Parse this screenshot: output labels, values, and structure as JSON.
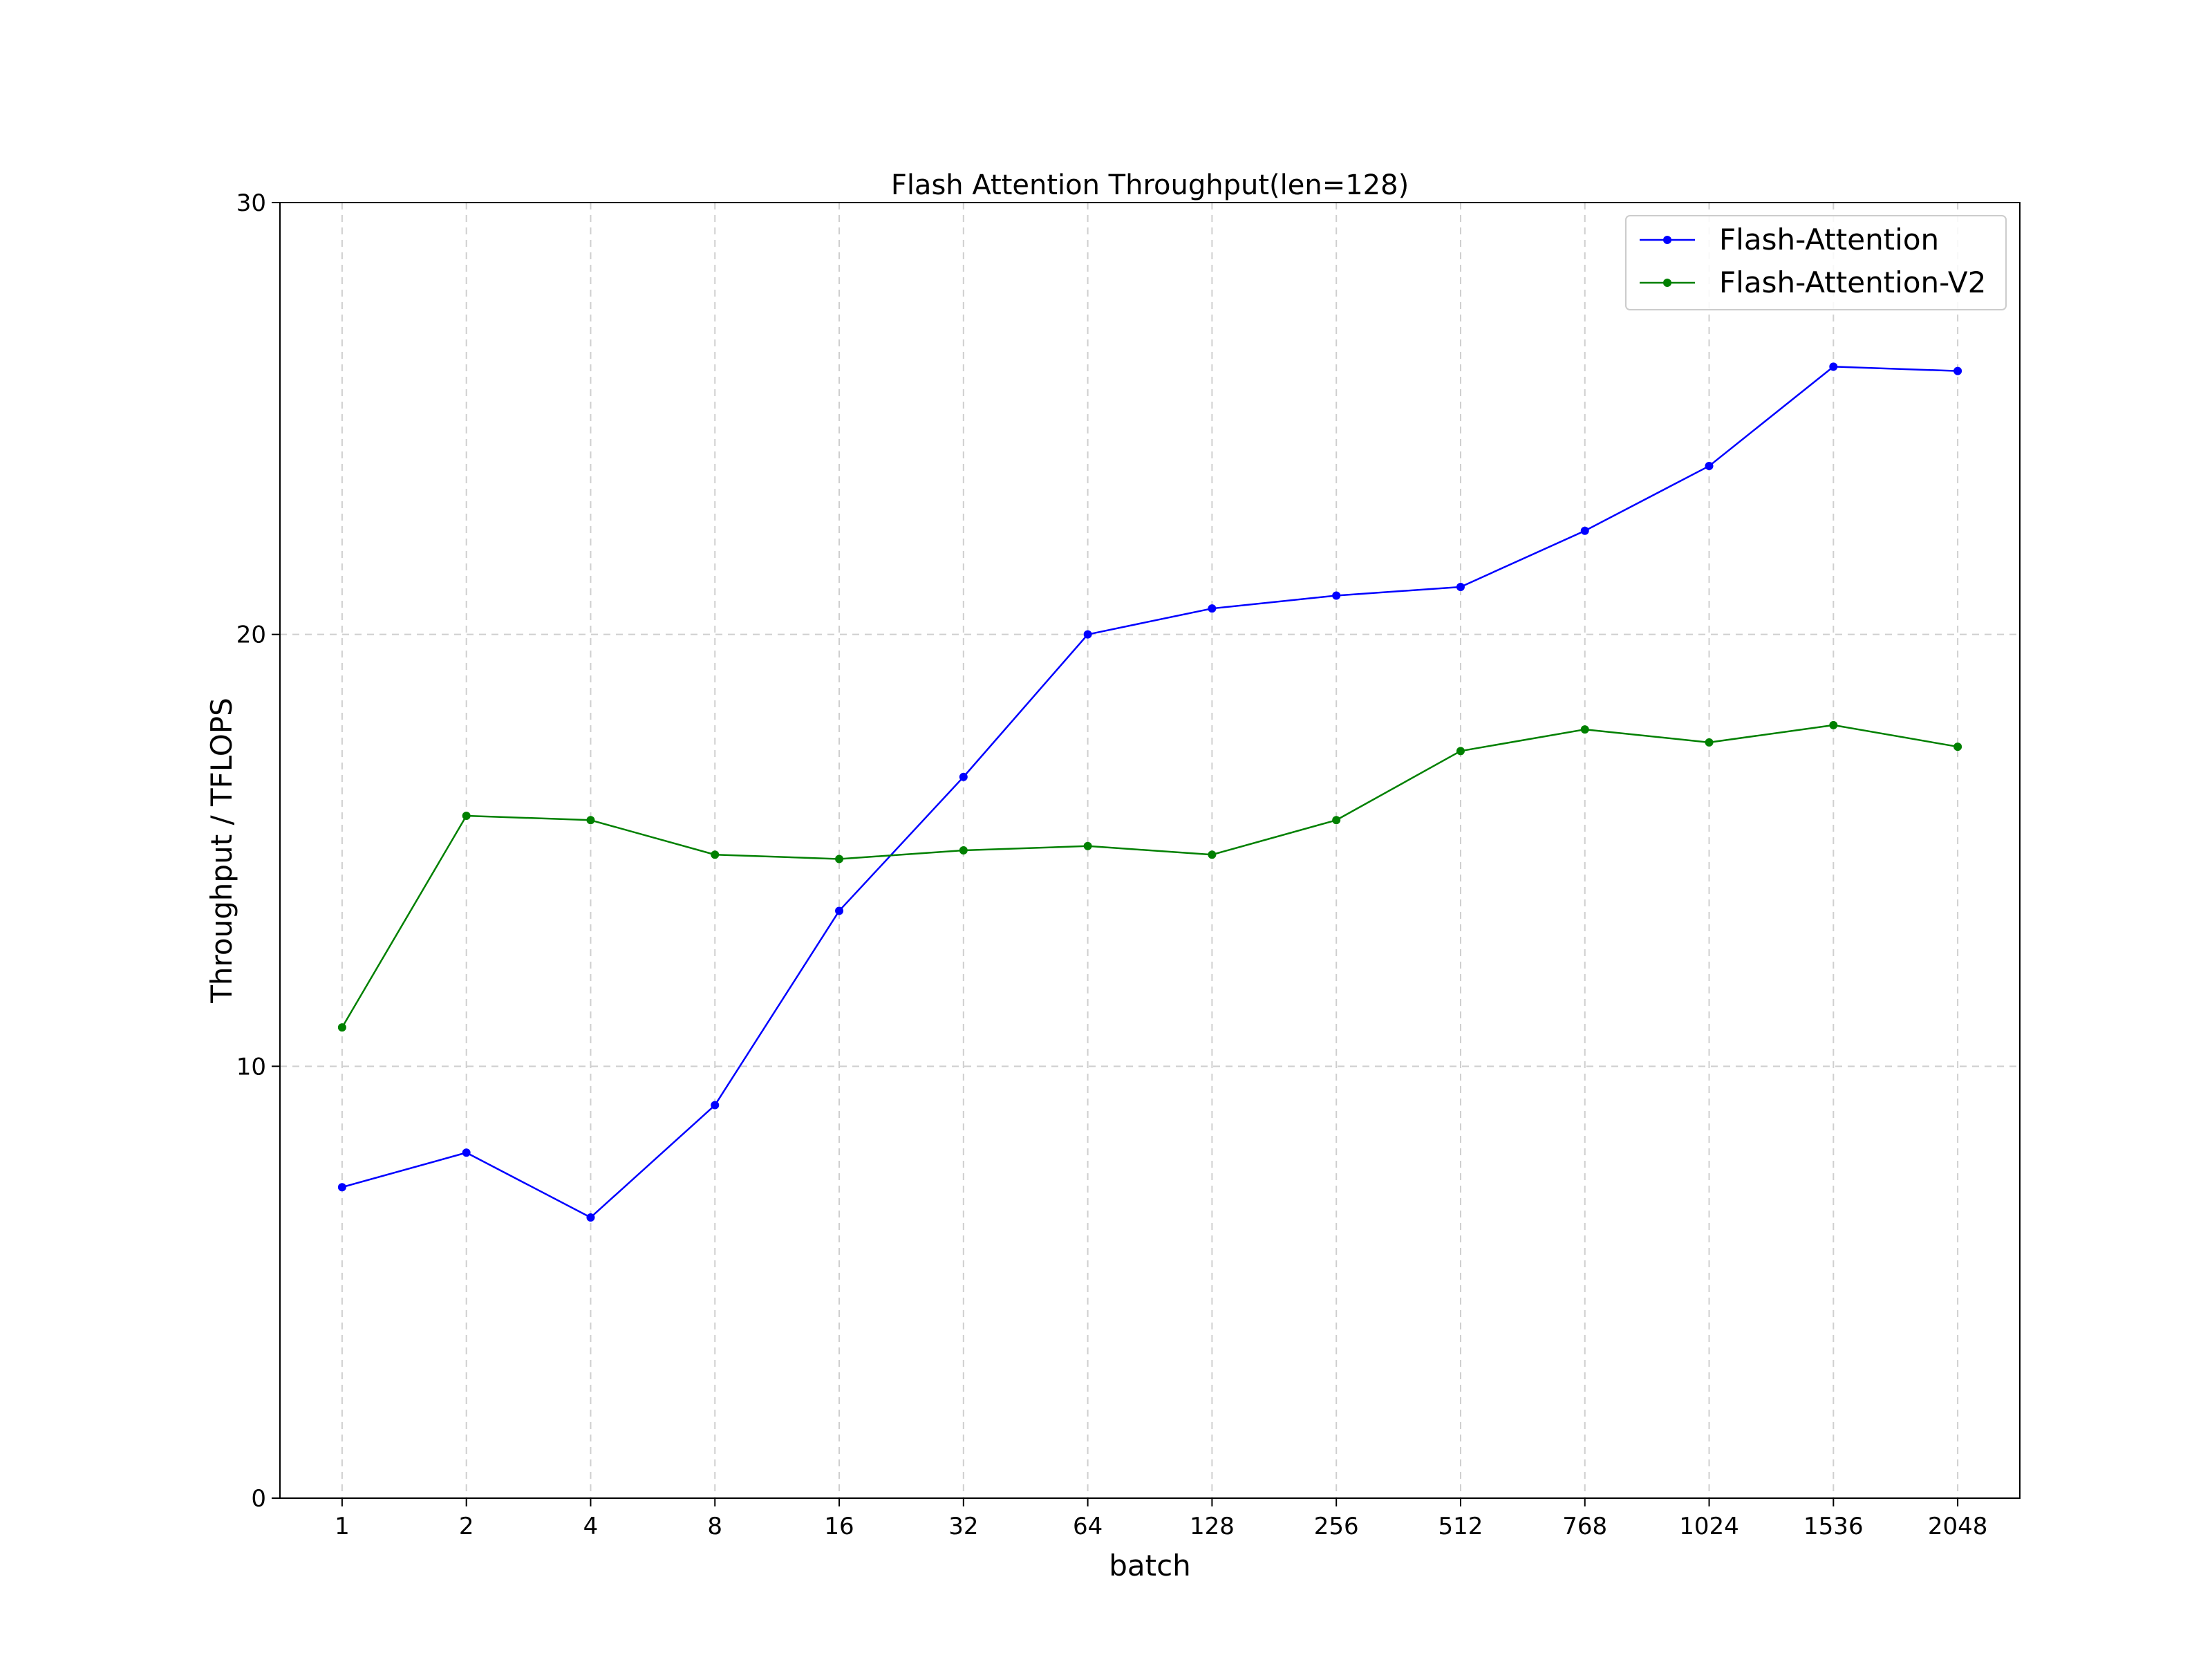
{
  "chart_data": {
    "type": "line",
    "title": "Flash Attention Throughput(len=128)",
    "xlabel": "batch",
    "ylabel": "Throughput / TFLOPS",
    "categories": [
      "1",
      "2",
      "4",
      "8",
      "16",
      "32",
      "64",
      "128",
      "256",
      "512",
      "768",
      "1024",
      "1536",
      "2048"
    ],
    "ylim": [
      0,
      30
    ],
    "yticks": [
      "0",
      "10",
      "20",
      "30"
    ],
    "grid": true,
    "legend_position": "top-right",
    "series": [
      {
        "name": "Flash-Attention",
        "color": "#0000ff",
        "values": [
          7.2,
          8.0,
          6.5,
          9.1,
          13.6,
          16.7,
          20.0,
          20.6,
          20.9,
          21.1,
          22.4,
          23.9,
          26.2,
          26.1
        ]
      },
      {
        "name": "Flash-Attention-V2",
        "color": "#008000",
        "values": [
          10.9,
          15.8,
          15.7,
          14.9,
          14.8,
          15.0,
          15.1,
          14.9,
          15.7,
          17.3,
          17.8,
          17.5,
          17.9,
          17.4
        ]
      }
    ]
  }
}
